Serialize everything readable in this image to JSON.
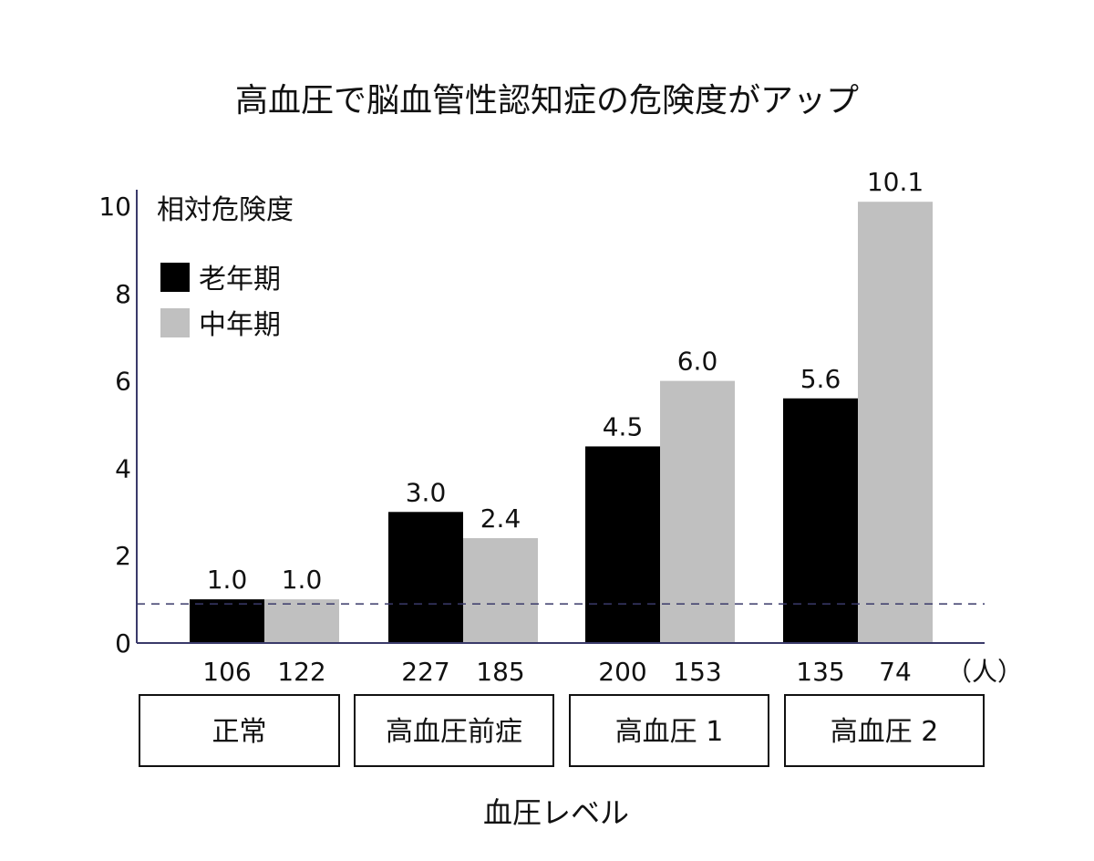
{
  "chart_data": {
    "type": "bar",
    "title": "高血圧で脳血管性認知症の危険度がアップ",
    "ylabel": "相対危険度",
    "xlabel": "血圧レベル",
    "ylim": [
      0,
      10
    ],
    "yticks": [
      0,
      2,
      4,
      6,
      8,
      10
    ],
    "reference_line": 1.0,
    "count_unit": "（人）",
    "categories": [
      "正常",
      "高血圧前症",
      "高血圧 1",
      "高血圧 2"
    ],
    "series": [
      {
        "name": "老年期",
        "color": "#000000",
        "values": [
          1.0,
          3.0,
          4.5,
          5.6
        ],
        "labels": [
          "1.0",
          "3.0",
          "4.5",
          "5.6"
        ],
        "counts": [
          "106",
          "227",
          "200",
          "135"
        ]
      },
      {
        "name": "中年期",
        "color": "#c0c0c0",
        "values": [
          1.0,
          2.4,
          6.0,
          10.1
        ],
        "labels": [
          "1.0",
          "2.4",
          "6.0",
          "10.1"
        ],
        "counts": [
          "122",
          "185",
          "153",
          "74"
        ]
      }
    ],
    "legend_position": "top-left",
    "grid": false,
    "axis_color": "#3a3a6a"
  }
}
